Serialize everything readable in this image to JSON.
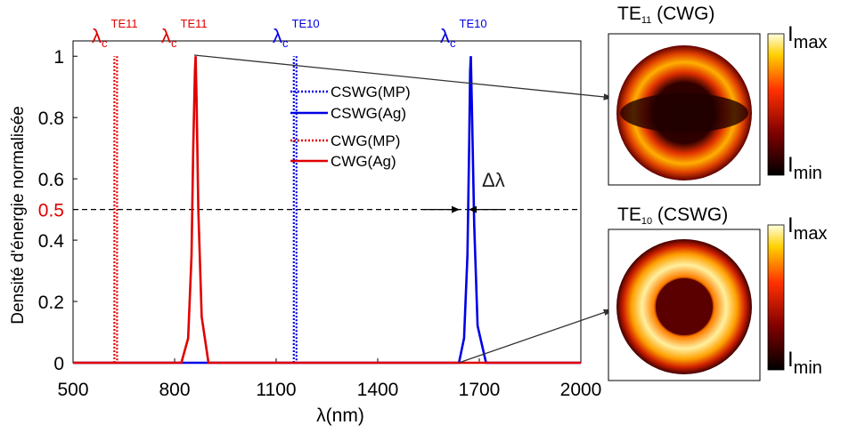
{
  "chart_data": {
    "type": "line",
    "xlabel": "λ(nm)",
    "ylabel": "Densité d'énergie normalisée",
    "xlim": [
      500,
      2000
    ],
    "ylim": [
      0,
      1.05
    ],
    "xticks": [
      500,
      800,
      1100,
      1400,
      1700,
      2000
    ],
    "yticks": [
      0,
      0.2,
      0.4,
      0.6,
      0.8,
      1
    ],
    "threshold": 0.5,
    "threshold_color": "#e00000",
    "series": [
      {
        "name": "CSWG(MP)",
        "color": "#0000e6",
        "dashed": true,
        "x": [
          1152,
          1152,
          1156,
          1160,
          1160
        ],
        "values": [
          0,
          1,
          null,
          1,
          0
        ]
      },
      {
        "name": "CSWG(Ag)",
        "color": "#0000e6",
        "dashed": false,
        "x": [
          500,
          1640,
          1655,
          1665,
          1670,
          1673,
          1675,
          1678,
          1685,
          1695,
          1720,
          2000
        ],
        "values": [
          0,
          0,
          0.08,
          0.35,
          0.7,
          0.95,
          1,
          0.85,
          0.45,
          0.12,
          0,
          0
        ]
      },
      {
        "name": "CWG(MP)",
        "color": "#e00000",
        "dashed": true,
        "x": [
          622,
          622,
          626,
          630,
          630
        ],
        "values": [
          0,
          1,
          null,
          1,
          0
        ]
      },
      {
        "name": "CWG(Ag)",
        "color": "#e00000",
        "dashed": false,
        "x": [
          500,
          820,
          840,
          850,
          855,
          860,
          862,
          865,
          870,
          880,
          900,
          2000
        ],
        "values": [
          0,
          0,
          0.08,
          0.35,
          0.7,
          0.95,
          1,
          0.85,
          0.5,
          0.15,
          0,
          0
        ]
      }
    ],
    "annotations": [
      {
        "main": "λ",
        "sub": "c",
        "sup": "TE11",
        "color": "#e00000"
      },
      {
        "main": "λ",
        "sub": "c",
        "sup": "TE11",
        "color": "#e00000"
      },
      {
        "main": "λ",
        "sub": "c",
        "sup": "TE10",
        "color": "#0000e6"
      },
      {
        "main": "λ",
        "sub": "c",
        "sup": "TE10",
        "color": "#0000e6"
      },
      {
        "main": "Δλ",
        "color": "#222222"
      }
    ],
    "insets": [
      {
        "title": "TE",
        "title_sub": "11",
        "title_rest": " (CWG)",
        "max": "I",
        "max_sub": "max",
        "min": "I",
        "min_sub": "min"
      },
      {
        "title": "TE",
        "title_sub": "10",
        "title_rest": " (CSWG)",
        "max": "I",
        "max_sub": "max",
        "min": "I",
        "min_sub": "min"
      }
    ]
  }
}
